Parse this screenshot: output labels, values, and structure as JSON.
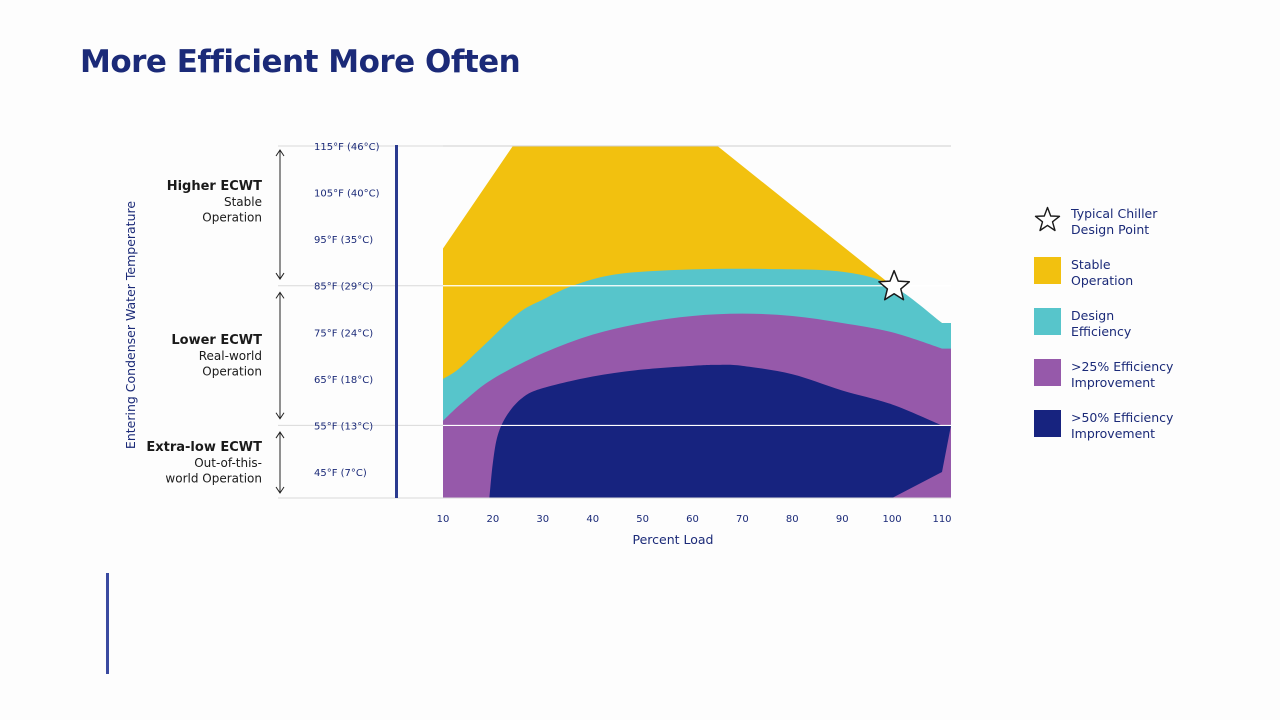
{
  "page": {
    "title": "More Efficient More Often"
  },
  "chart_data": {
    "type": "area",
    "title": "More Efficient More Often",
    "xlabel": "Percent Load",
    "ylabel": "Entering Condenser Water Temperature",
    "x_ticks": [
      10,
      20,
      30,
      40,
      50,
      60,
      70,
      80,
      90,
      100,
      110
    ],
    "xlim": [
      10,
      110
    ],
    "ylim": [
      40,
      115
    ],
    "y_ticks": [
      {
        "value": 115,
        "label": "115°F (46°C)"
      },
      {
        "value": 105,
        "label": "105°F (40°C)"
      },
      {
        "value": 95,
        "label": "95°F (35°C)"
      },
      {
        "value": 85,
        "label": "85°F (29°C)"
      },
      {
        "value": 75,
        "label": "75°F (24°C)"
      },
      {
        "value": 65,
        "label": "65°F (18°C)"
      },
      {
        "value": 55,
        "label": "55°F (13°C)"
      },
      {
        "value": 45,
        "label": "45°F (7°C)"
      }
    ],
    "gridlines_at": [
      115,
      85,
      55
    ],
    "regions": [
      {
        "heading": "Higher ECWT",
        "sub": [
          "Stable",
          "Operation"
        ],
        "range": [
          86,
          115
        ]
      },
      {
        "heading": "Lower ECWT",
        "sub": [
          "Real-world",
          "Operation"
        ],
        "range": [
          56,
          84
        ]
      },
      {
        "heading": "Extra-low ECWT",
        "sub": [
          "Out-of-this-",
          "world Operation"
        ],
        "range": [
          40,
          54
        ]
      }
    ],
    "series": [
      {
        "name": "Stable Operation",
        "color": "#f2c10f",
        "upper": [
          [
            10,
            93
          ],
          [
            24,
            115
          ],
          [
            65,
            115
          ],
          [
            100,
            85
          ],
          [
            110,
            77
          ]
        ]
      },
      {
        "name": "Design Efficiency",
        "color": "#57c5cb",
        "upper": [
          [
            10,
            65
          ],
          [
            13,
            67
          ],
          [
            18,
            72
          ],
          [
            25,
            79
          ],
          [
            30,
            82
          ],
          [
            36,
            85
          ],
          [
            45,
            87.5
          ],
          [
            60,
            88.5
          ],
          [
            75,
            88.6
          ],
          [
            90,
            88
          ],
          [
            100,
            85
          ],
          [
            110,
            77
          ]
        ]
      },
      {
        "name": ">25% Efficiency Improvement",
        "color": "#9659aa",
        "upper": [
          [
            10,
            56
          ],
          [
            14,
            60
          ],
          [
            20,
            65
          ],
          [
            30,
            70.5
          ],
          [
            40,
            74.5
          ],
          [
            50,
            77
          ],
          [
            60,
            78.5
          ],
          [
            70,
            79
          ],
          [
            80,
            78.5
          ],
          [
            90,
            77
          ],
          [
            100,
            75
          ],
          [
            110,
            71.5
          ]
        ]
      },
      {
        "name": ">50% Efficiency Improvement",
        "color": "#17237f",
        "upper": [
          [
            19.3,
            40
          ],
          [
            20,
            47
          ],
          [
            21,
            53
          ],
          [
            23,
            57.5
          ],
          [
            26,
            61
          ],
          [
            30,
            63
          ],
          [
            40,
            65.5
          ],
          [
            50,
            67
          ],
          [
            60,
            67.8
          ],
          [
            65,
            68
          ],
          [
            70,
            67.8
          ],
          [
            80,
            66
          ],
          [
            90,
            62.5
          ],
          [
            100,
            59.5
          ],
          [
            110,
            55
          ]
        ],
        "lower": [
          [
            100,
            40
          ],
          [
            110,
            45
          ]
        ]
      }
    ],
    "design_point": {
      "x": 100,
      "y": 85,
      "label": "Typical Chiller Design Point"
    }
  },
  "legend": {
    "items": [
      {
        "label": [
          "Typical Chiller",
          "Design Point"
        ],
        "kind": "star",
        "color": "#ffffff"
      },
      {
        "label": [
          "Stable",
          "Operation"
        ],
        "kind": "swatch",
        "color": "#f2c10f"
      },
      {
        "label": [
          "Design",
          "Efficiency"
        ],
        "kind": "swatch",
        "color": "#57c5cb"
      },
      {
        "label": [
          ">25% Efficiency",
          "Improvement"
        ],
        "kind": "swatch",
        "color": "#9659aa"
      },
      {
        "label": [
          ">50% Efficiency",
          "Improvement"
        ],
        "kind": "swatch",
        "color": "#17237f"
      }
    ]
  },
  "colors": {
    "navy": "#1b2a78",
    "grid": "#d9d9d9"
  }
}
